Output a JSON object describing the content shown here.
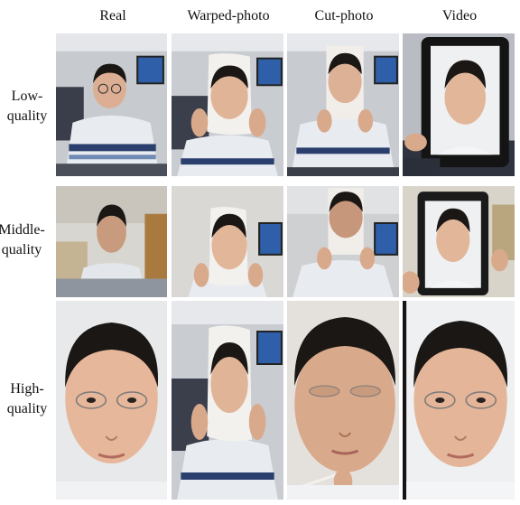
{
  "columns": [
    "Real",
    "Warped-photo",
    "Cut-photo",
    "Video"
  ],
  "rows": [
    {
      "label_line1": "Low-",
      "label_line2": "quality"
    },
    {
      "label_line1": "Middle-",
      "label_line2": "quality"
    },
    {
      "label_line1": "High-",
      "label_line2": "quality"
    }
  ],
  "colors": {
    "wall": "#c9ccd1",
    "office_wall": "#d9d6cc",
    "shirt": "#e8ecf0",
    "stripe": "#2b3f6e",
    "skin": "#e6b79a",
    "hair": "#1b1714",
    "frame": "#111111",
    "monitor": "#2e5fa8"
  }
}
